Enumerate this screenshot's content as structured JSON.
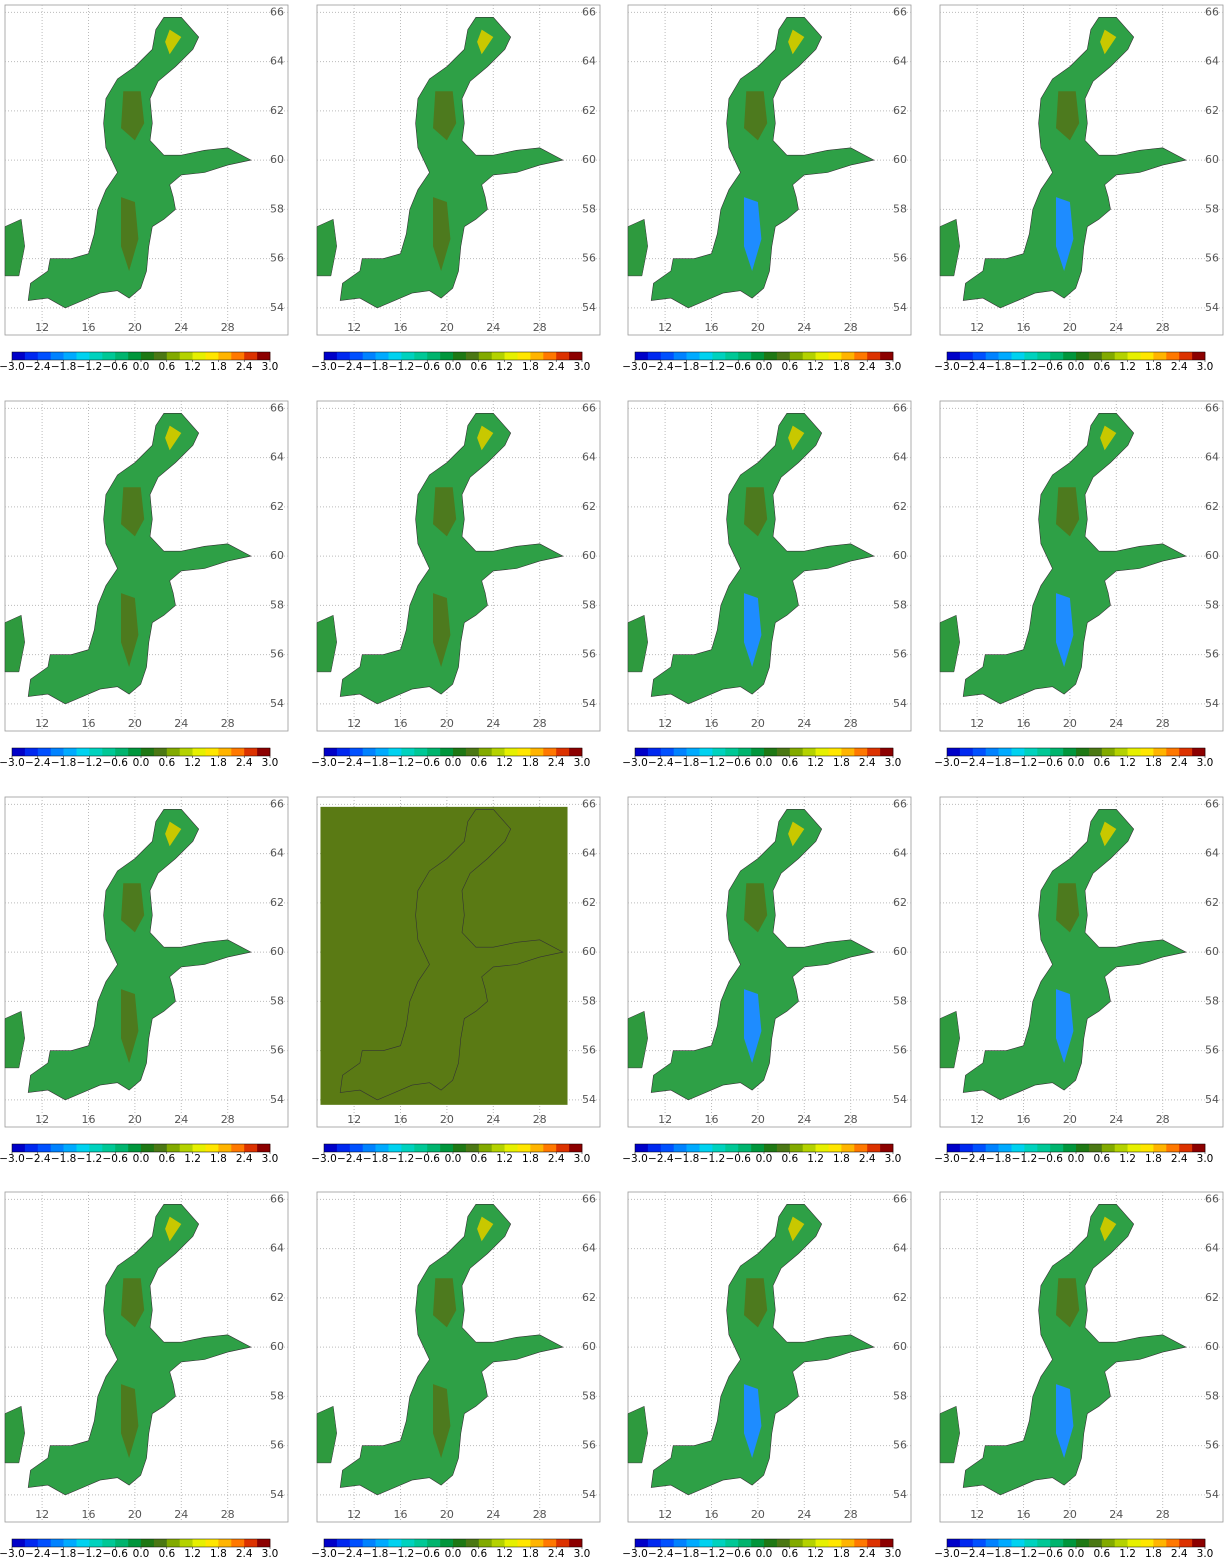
{
  "map": {
    "lon_lim": [
      8.8,
      33.2
    ],
    "lat_lim": [
      52.9,
      66.3
    ],
    "lon_ticks": [
      12,
      16,
      20,
      24,
      28
    ],
    "lat_ticks": [
      54,
      56,
      58,
      60,
      62,
      64,
      66
    ],
    "colorbar": {
      "lim": [
        -3,
        3
      ],
      "colors": [
        "#0000c8",
        "#0028f0",
        "#0050ff",
        "#0082ff",
        "#00aaff",
        "#00d2f0",
        "#00d2be",
        "#00c896",
        "#00b46e",
        "#00963c",
        "#1e7814",
        "#4b7814",
        "#82aa00",
        "#b4d200",
        "#e6f000",
        "#ffe600",
        "#ffb400",
        "#ff7800",
        "#dc3200",
        "#8c0000"
      ],
      "ticks": [
        {
          "value": -3,
          "label": "−3.0"
        },
        {
          "value": -2.4,
          "label": "−2.4"
        },
        {
          "value": -1.8,
          "label": "−1.8"
        },
        {
          "value": -1.2,
          "label": "−1.2"
        },
        {
          "value": -0.6,
          "label": "−0.6"
        },
        {
          "value": 0,
          "label": "0.0"
        },
        {
          "value": 0.6,
          "label": "0.6"
        },
        {
          "value": 1.2,
          "label": "1.2"
        },
        {
          "value": 1.8,
          "label": "1.8"
        },
        {
          "value": 2.4,
          "label": "2.4"
        },
        {
          "value": 3,
          "label": "3.0"
        }
      ]
    }
  }
}
